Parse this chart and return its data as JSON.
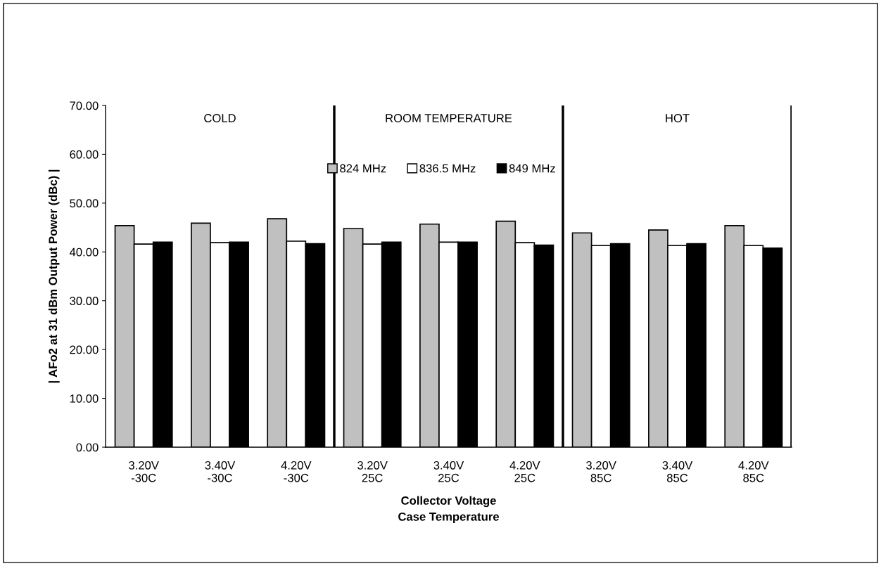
{
  "chart_data": {
    "type": "bar",
    "categories": [
      "3.20V\n-30C",
      "3.40V\n-30C",
      "4.20V\n-30C",
      "3.20V\n25C",
      "3.40V\n25C",
      "4.20V\n25C",
      "3.20V\n85C",
      "3.40V\n85C",
      "4.20V\n85C"
    ],
    "series": [
      {
        "name": "824 MHz",
        "color": "#c0c0c0",
        "values": [
          45.4,
          45.9,
          46.8,
          44.8,
          45.7,
          46.3,
          43.9,
          44.5,
          45.4
        ]
      },
      {
        "name": "836.5 MHz",
        "color": "#ffffff",
        "values": [
          41.6,
          41.9,
          42.2,
          41.6,
          42.0,
          41.9,
          41.3,
          41.3,
          41.3
        ]
      },
      {
        "name": "849 MHz",
        "color": "#000000",
        "values": [
          42.0,
          42.0,
          41.7,
          42.0,
          42.0,
          41.4,
          41.7,
          41.7,
          40.8
        ]
      }
    ],
    "xlabel": "Collector Voltage\nCase Temperature",
    "ylabel": "| AFo2 at 31 dBm Output Power (dBc) |",
    "ylim": [
      0,
      70
    ],
    "yticks": [
      {
        "value": 0,
        "label": "0.00"
      },
      {
        "value": 10,
        "label": "10.00"
      },
      {
        "value": 20,
        "label": "20.00"
      },
      {
        "value": 30,
        "label": "30.00"
      },
      {
        "value": 40,
        "label": "40.00"
      },
      {
        "value": 50,
        "label": "50.00"
      },
      {
        "value": 60,
        "label": "60.00"
      },
      {
        "value": 70,
        "label": "70.00"
      }
    ],
    "annotations": [
      "COLD",
      "ROOM TEMPERATURE",
      "HOT"
    ],
    "legend": "top",
    "grid": false
  }
}
